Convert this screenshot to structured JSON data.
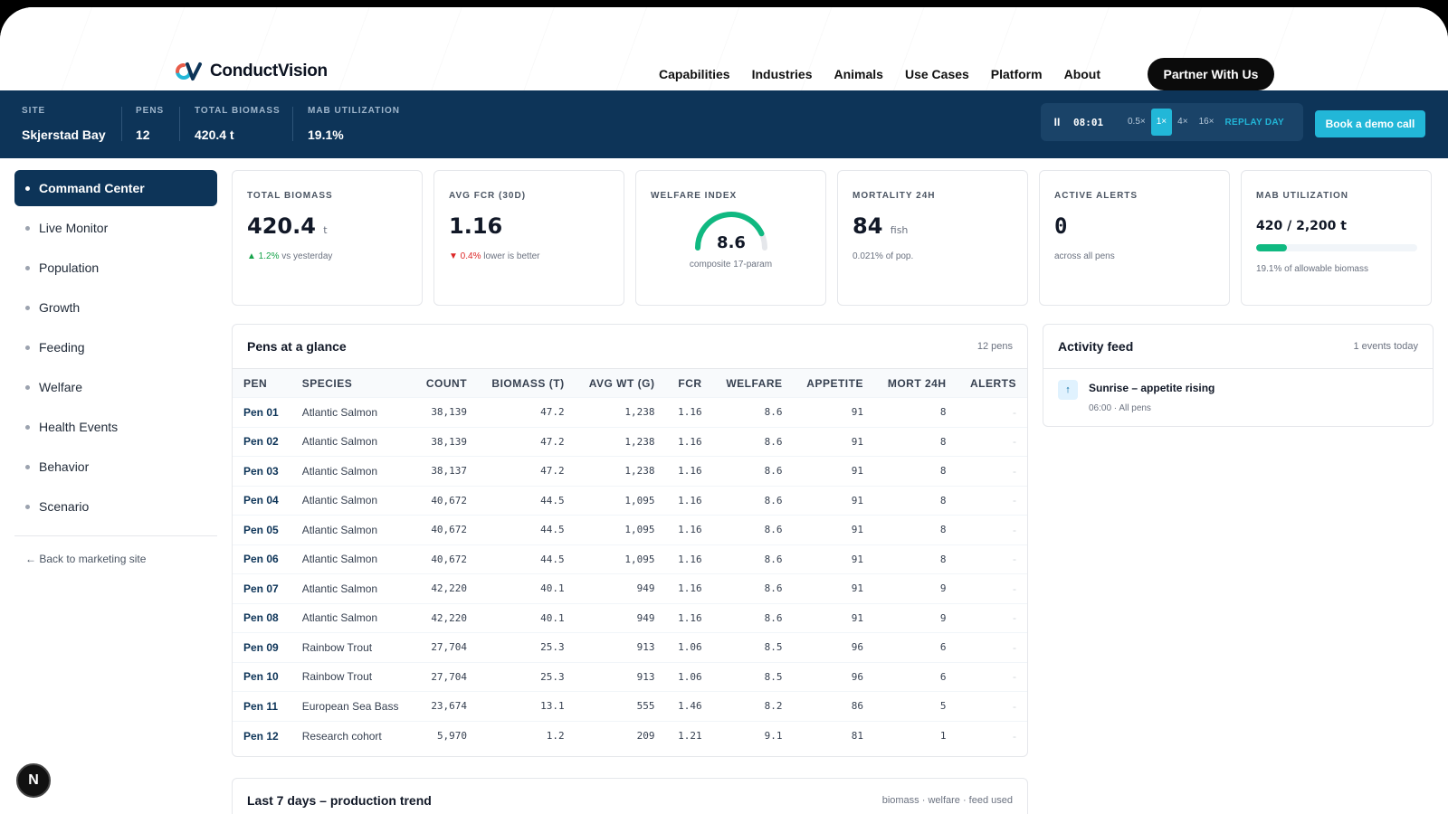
{
  "nav": {
    "brand": "ConductVision",
    "links": [
      "Capabilities",
      "Industries",
      "Animals",
      "Use Cases",
      "Platform",
      "About"
    ],
    "cta": "Partner With Us"
  },
  "sitebar": {
    "stats": [
      {
        "label": "SITE",
        "value": "Skjerstad Bay"
      },
      {
        "label": "PENS",
        "value": "12"
      },
      {
        "label": "TOTAL BIOMASS",
        "value": "420.4 t"
      },
      {
        "label": "MAB UTILIZATION",
        "value": "19.1%"
      }
    ],
    "player": {
      "pause_icon": "II",
      "time": "08:01",
      "speeds": [
        "0.5×",
        "1×",
        "4×",
        "16×"
      ],
      "active_speed": "1×",
      "replay": "REPLAY DAY"
    },
    "demo": "Book a demo call"
  },
  "sidebar": {
    "items": [
      "Command Center",
      "Live Monitor",
      "Population",
      "Growth",
      "Feeding",
      "Welfare",
      "Health Events",
      "Behavior",
      "Scenario"
    ],
    "active": "Command Center",
    "back": "← Back to marketing site",
    "badge": "N"
  },
  "kpis": {
    "biomass": {
      "label": "TOTAL BIOMASS",
      "value": "420.4",
      "unit": "t",
      "delta": "▲ 1.2%",
      "note": " vs yesterday"
    },
    "fcr": {
      "label": "AVG FCR (30D)",
      "value": "1.16",
      "delta": "▼ 0.4%",
      "note": " lower is better"
    },
    "welfare": {
      "label": "WELFARE INDEX",
      "value": "8.6",
      "max": 10,
      "note": "composite 17-param"
    },
    "mortality": {
      "label": "MORTALITY 24H",
      "value": "84",
      "unit": "fish",
      "note": "0.021% of pop."
    },
    "alerts": {
      "label": "ACTIVE ALERTS",
      "value": "0",
      "note": "across all pens"
    },
    "mab": {
      "label": "MAB UTILIZATION",
      "value": "420 / 2,200 t",
      "fill": 0.191,
      "note": "19.1% of allowable biomass"
    }
  },
  "pens": {
    "title": "Pens at a glance",
    "meta": "12 pens",
    "columns": [
      "PEN",
      "SPECIES",
      "COUNT",
      "BIOMASS (T)",
      "AVG WT (G)",
      "FCR",
      "WELFARE",
      "APPETITE",
      "MORT 24H",
      "ALERTS"
    ],
    "rows": [
      [
        "Pen 01",
        "Atlantic Salmon",
        "38,139",
        "47.2",
        "1,238",
        "1.16",
        "8.6",
        "91",
        "8",
        "-"
      ],
      [
        "Pen 02",
        "Atlantic Salmon",
        "38,139",
        "47.2",
        "1,238",
        "1.16",
        "8.6",
        "91",
        "8",
        "-"
      ],
      [
        "Pen 03",
        "Atlantic Salmon",
        "38,137",
        "47.2",
        "1,238",
        "1.16",
        "8.6",
        "91",
        "8",
        "-"
      ],
      [
        "Pen 04",
        "Atlantic Salmon",
        "40,672",
        "44.5",
        "1,095",
        "1.16",
        "8.6",
        "91",
        "8",
        "-"
      ],
      [
        "Pen 05",
        "Atlantic Salmon",
        "40,672",
        "44.5",
        "1,095",
        "1.16",
        "8.6",
        "91",
        "8",
        "-"
      ],
      [
        "Pen 06",
        "Atlantic Salmon",
        "40,672",
        "44.5",
        "1,095",
        "1.16",
        "8.6",
        "91",
        "8",
        "-"
      ],
      [
        "Pen 07",
        "Atlantic Salmon",
        "42,220",
        "40.1",
        "949",
        "1.16",
        "8.6",
        "91",
        "9",
        "-"
      ],
      [
        "Pen 08",
        "Atlantic Salmon",
        "42,220",
        "40.1",
        "949",
        "1.16",
        "8.6",
        "91",
        "9",
        "-"
      ],
      [
        "Pen 09",
        "Rainbow Trout",
        "27,704",
        "25.3",
        "913",
        "1.06",
        "8.5",
        "96",
        "6",
        "-"
      ],
      [
        "Pen 10",
        "Rainbow Trout",
        "27,704",
        "25.3",
        "913",
        "1.06",
        "8.5",
        "96",
        "6",
        "-"
      ],
      [
        "Pen 11",
        "European Sea Bass",
        "23,674",
        "13.1",
        "555",
        "1.46",
        "8.2",
        "86",
        "5",
        "-"
      ],
      [
        "Pen 12",
        "Research cohort",
        "5,970",
        "1.2",
        "209",
        "1.21",
        "9.1",
        "81",
        "1",
        "-"
      ]
    ]
  },
  "activity": {
    "title": "Activity feed",
    "meta": "1 events today",
    "items": [
      {
        "icon": "↑",
        "title": "Sunrise – appetite rising",
        "sub": "06:00 · All pens"
      }
    ]
  },
  "trend": {
    "title": "Last 7 days – production trend",
    "meta": "biomass · welfare · feed used"
  },
  "colors": {
    "navy": "#0d3458",
    "cyan": "#22b7d8",
    "green": "#10b981",
    "orange": "#d97706"
  }
}
